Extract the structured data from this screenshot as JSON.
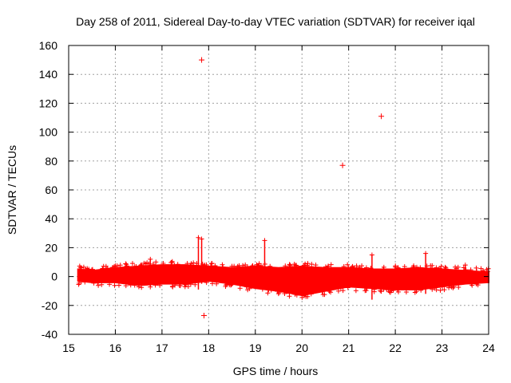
{
  "chart_data": {
    "type": "scatter",
    "title": "Day 258 of 2011, Sidereal Day-to-day VTEC variation (SDTVAR) for receiver iqal",
    "xlabel": "GPS time / hours",
    "ylabel": "SDTVAR / TECUs",
    "xlim": [
      15,
      24
    ],
    "ylim": [
      -40,
      160
    ],
    "x_ticks": [
      "15",
      "16",
      "17",
      "18",
      "19",
      "20",
      "21",
      "22",
      "23",
      "24"
    ],
    "y_ticks": [
      "-40",
      "-20",
      "0",
      "20",
      "40",
      "60",
      "80",
      "100",
      "120",
      "140",
      "160"
    ],
    "grid": true,
    "marker": "plus",
    "series_color": "#ff0000",
    "band": {
      "description_of_values": "dense scatter of points around zero; upper and lower envelope in data units",
      "x": [
        15.2,
        15.5,
        16.0,
        16.5,
        17.0,
        17.5,
        18.0,
        18.5,
        19.0,
        19.5,
        20.0,
        20.5,
        21.0,
        21.5,
        22.0,
        22.5,
        23.0,
        23.5,
        24.0
      ],
      "upper": [
        5,
        4,
        6,
        7,
        8,
        8,
        7,
        6,
        7,
        6,
        7,
        6,
        6,
        5,
        5,
        6,
        5,
        4,
        3
      ],
      "lower": [
        -3,
        -4,
        -4,
        -6,
        -5,
        -5,
        -3,
        -5,
        -8,
        -10,
        -13,
        -10,
        -7,
        -8,
        -9,
        -9,
        -7,
        -5,
        -4
      ]
    },
    "spikes": [
      {
        "x": 16.75,
        "y_top": 12,
        "y_bottom": -7
      },
      {
        "x": 17.78,
        "y_top": 27,
        "y_bottom": -9
      },
      {
        "x": 17.85,
        "y_top": 26,
        "y_bottom": -5
      },
      {
        "x": 19.2,
        "y_top": 25,
        "y_bottom": -5
      },
      {
        "x": 21.5,
        "y_top": 15,
        "y_bottom": -16
      },
      {
        "x": 22.65,
        "y_top": 16,
        "y_bottom": -12
      },
      {
        "x": 23.5,
        "y_top": 8,
        "y_bottom": -4
      }
    ],
    "outliers": [
      {
        "x": 17.85,
        "y": 150
      },
      {
        "x": 21.7,
        "y": 111
      },
      {
        "x": 20.87,
        "y": 77
      },
      {
        "x": 17.9,
        "y": -27
      }
    ]
  }
}
